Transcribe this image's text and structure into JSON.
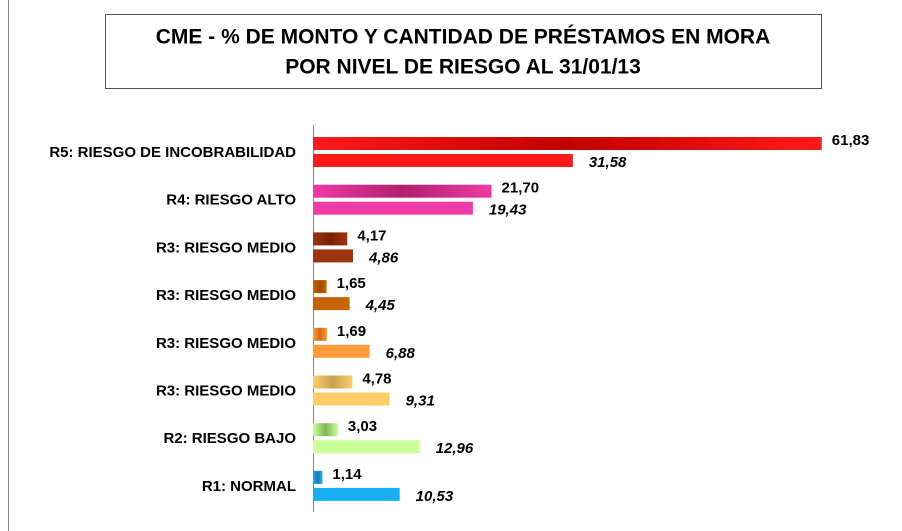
{
  "chart_data": {
    "type": "hbar",
    "title": "CME - % DE MONTO Y CANTIDAD DE PRÉSTAMOS EN MORA",
    "subtitle": "POR NIVEL DE RIESGO AL 31/01/13",
    "categories": [
      "R5: RIESGO DE INCOBRABILIDAD",
      "R4: RIESGO ALTO",
      "R3: RIESGO MEDIO",
      "R3: RIESGO MEDIO",
      "R3: RIESGO MEDIO",
      "R3: RIESGO MEDIO",
      "R2: RIESGO BAJO",
      "R1: NORMAL"
    ],
    "xlim": [
      0,
      70
    ],
    "series": [
      {
        "values": [
          61.83,
          21.7,
          4.17,
          1.65,
          1.69,
          4.78,
          3.03,
          1.14
        ],
        "value_labels": [
          "61,83",
          "21,70",
          "4,17",
          "1,65",
          "1,69",
          "4,78",
          "3,03",
          "1,14"
        ],
        "colors": [
          "#c00000",
          "#b0206e",
          "#7a2000",
          "#a04a00",
          "#d06a18",
          "#c8a050",
          "#80b858",
          "#1878b8"
        ]
      },
      {
        "values": [
          31.58,
          19.43,
          4.86,
          4.45,
          6.88,
          9.31,
          12.96,
          10.53
        ],
        "value_labels": [
          "31,58",
          "19,43",
          "4,86",
          "4,45",
          "6,88",
          "9,31",
          "12,96",
          "10,53"
        ],
        "colors": [
          "#ff1a1a",
          "#ee3aa6",
          "#9c3412",
          "#c86400",
          "#ff9a3a",
          "#ffcc6a",
          "#ccff99",
          "#1ab0ef"
        ]
      }
    ]
  }
}
